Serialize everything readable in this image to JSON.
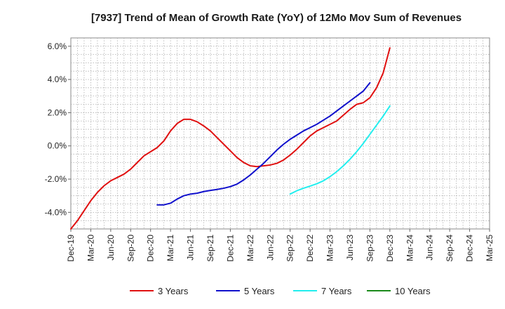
{
  "chart_data": {
    "type": "line",
    "title": "[7937]  Trend of Mean of Growth Rate (YoY) of 12Mo Mov Sum of Revenues",
    "xlabel": "",
    "ylabel": "",
    "ylim": [
      -5.0,
      6.5
    ],
    "y_ticks": [
      -4,
      -2,
      0,
      2,
      4,
      6
    ],
    "y_tick_labels": [
      "-4.0%",
      "-2.0%",
      "0.0%",
      "2.0%",
      "4.0%",
      "6.0%"
    ],
    "x_ticks": [
      "Dec-19",
      "Mar-20",
      "Jun-20",
      "Sep-20",
      "Dec-20",
      "Mar-21",
      "Jun-21",
      "Sep-21",
      "Dec-21",
      "Mar-22",
      "Jun-22",
      "Sep-22",
      "Dec-22",
      "Mar-23",
      "Jun-23",
      "Sep-23",
      "Dec-23",
      "Mar-24",
      "Jun-24",
      "Sep-24",
      "Dec-24",
      "Mar-25"
    ],
    "grid": true,
    "legend_position": "bottom",
    "series": [
      {
        "name": "3 Years",
        "color": "#e01010",
        "start_index": 0,
        "values": [
          -5.0,
          -4.5,
          -3.9,
          -3.3,
          -2.8,
          -2.4,
          -2.1,
          -1.9,
          -1.7,
          -1.4,
          -1.0,
          -0.6,
          -0.35,
          -0.1,
          0.3,
          0.9,
          1.35,
          1.6,
          1.6,
          1.45,
          1.2,
          0.9,
          0.5,
          0.1,
          -0.3,
          -0.7,
          -1.0,
          -1.2,
          -1.25,
          -1.2,
          -1.15,
          -1.05,
          -0.85,
          -0.55,
          -0.2,
          0.2,
          0.6,
          0.9,
          1.1,
          1.3,
          1.5,
          1.85,
          2.2,
          2.5,
          2.6,
          2.9,
          3.5,
          4.4,
          5.9
        ]
      },
      {
        "name": "5 Years",
        "color": "#1010cc",
        "start_index": 13,
        "values": [
          -3.55,
          -3.55,
          -3.45,
          -3.2,
          -3.0,
          -2.9,
          -2.85,
          -2.75,
          -2.68,
          -2.62,
          -2.55,
          -2.45,
          -2.3,
          -2.05,
          -1.75,
          -1.4,
          -1.05,
          -0.65,
          -0.25,
          0.1,
          0.4,
          0.65,
          0.9,
          1.1,
          1.3,
          1.55,
          1.8,
          2.1,
          2.4,
          2.7,
          3.0,
          3.3,
          3.8
        ]
      },
      {
        "name": "7 Years",
        "color": "#22eeee",
        "start_index": 33,
        "values": [
          -2.9,
          -2.7,
          -2.55,
          -2.42,
          -2.28,
          -2.1,
          -1.85,
          -1.55,
          -1.2,
          -0.8,
          -0.35,
          0.15,
          0.7,
          1.25,
          1.8,
          2.4
        ]
      },
      {
        "name": "10 Years",
        "color": "#1a8a1a",
        "start_index": 0,
        "values": []
      }
    ]
  }
}
